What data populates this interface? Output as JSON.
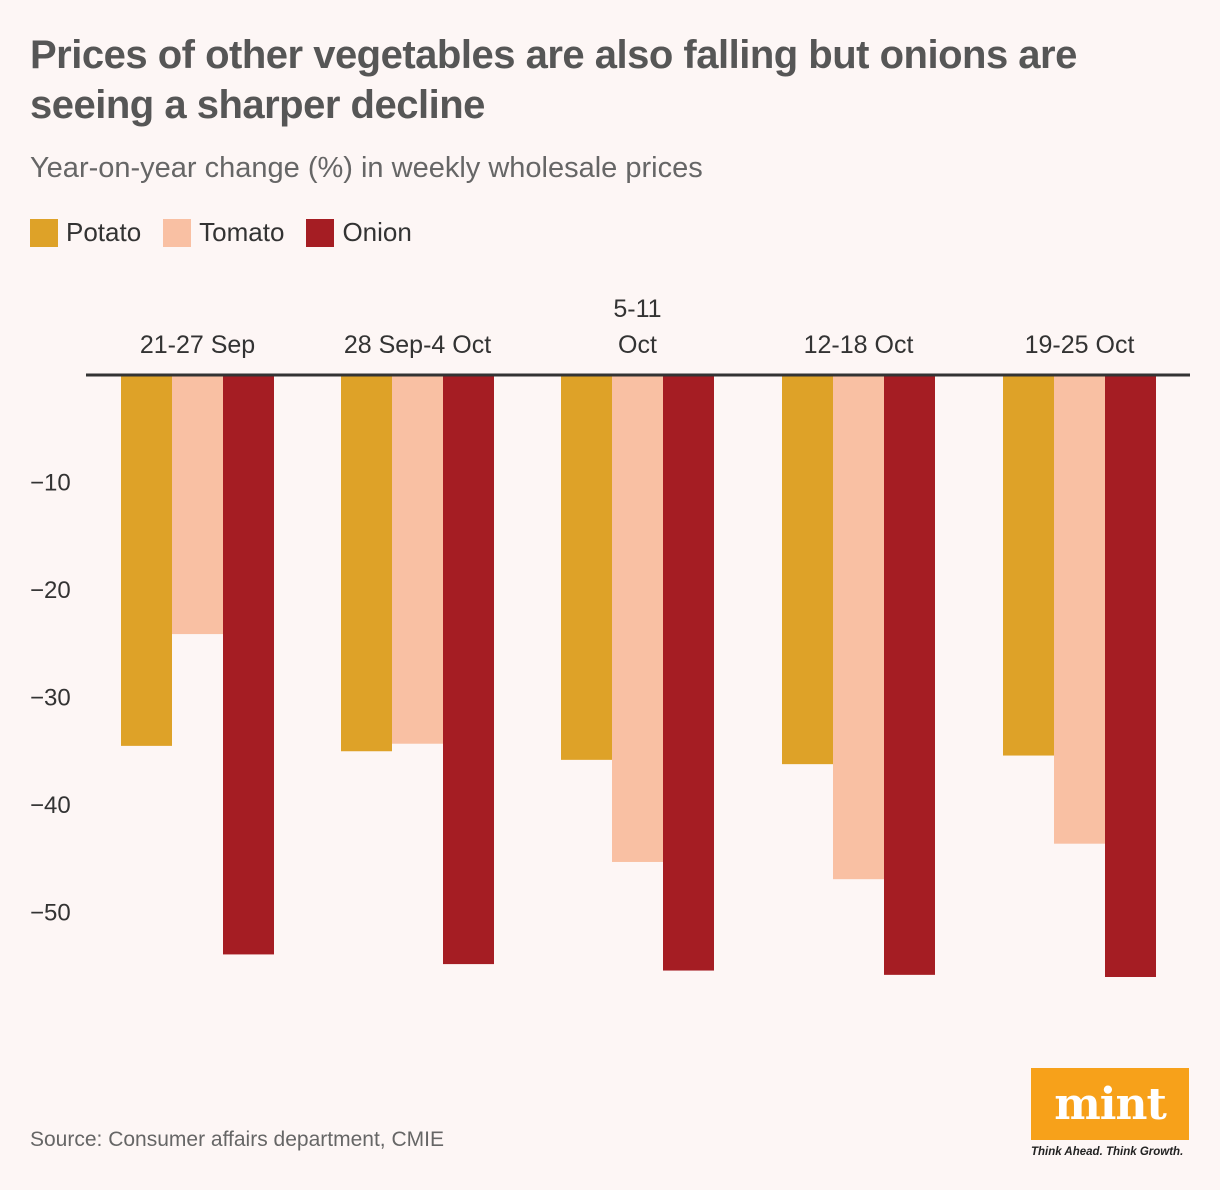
{
  "title": "Prices of other vegetables are also falling but onions are seeing a sharper decline",
  "subtitle": "Year-on-year change (%) in weekly wholesale prices",
  "source": "Source: Consumer affairs department, CMIE",
  "logo": {
    "name": "mint",
    "tagline": "Think Ahead. Think Growth.",
    "color": "#f7a11a"
  },
  "chart_data": {
    "type": "bar",
    "title": "Prices of other vegetables are also falling but onions are seeing a sharper decline",
    "subtitle": "Year-on-year change (%) in weekly wholesale prices",
    "xlabel": "",
    "ylabel": "",
    "categories": [
      [
        "21-27 Sep"
      ],
      [
        "28 Sep-4 Oct"
      ],
      [
        "5-11",
        "Oct"
      ],
      [
        "12-18 Oct"
      ],
      [
        "19-25 Oct"
      ]
    ],
    "series": [
      {
        "name": "Potato",
        "color": "#dea228",
        "values": [
          -34.5,
          -35.0,
          -35.8,
          -36.2,
          -35.4
        ]
      },
      {
        "name": "Tomato",
        "color": "#f9c0a3",
        "values": [
          -24.1,
          -34.3,
          -45.3,
          -46.9,
          -43.6
        ]
      },
      {
        "name": "Onion",
        "color": "#a51d23",
        "values": [
          -53.9,
          -54.8,
          -55.4,
          -55.8,
          -56.0
        ]
      }
    ],
    "ylim": [
      -60,
      0
    ],
    "yticks": [
      -10,
      -20,
      -30,
      -40,
      -50
    ],
    "ytick_labels": [
      "−10",
      "−20",
      "−30",
      "−40",
      "−50"
    ],
    "grid": false,
    "legend": "top-left"
  }
}
